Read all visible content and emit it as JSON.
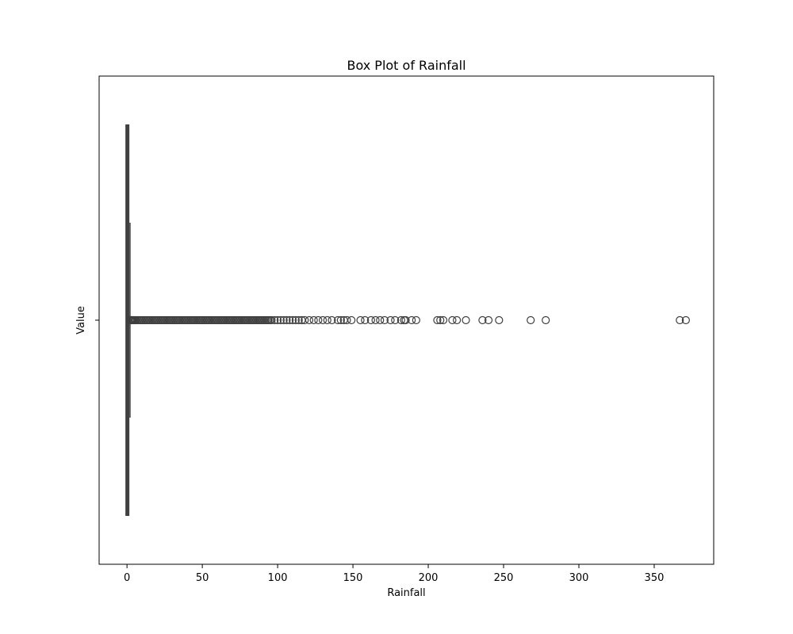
{
  "chart_data": {
    "type": "box",
    "orientation": "horizontal",
    "title": "Box Plot of Rainfall",
    "xlabel": "Rainfall",
    "ylabel": "Value",
    "xlim": [
      -18.5,
      389.5
    ],
    "xticks": [
      0,
      50,
      100,
      150,
      200,
      250,
      300,
      350
    ],
    "box": {
      "min": 0,
      "q1": 0,
      "median": 0,
      "q3": 0.8,
      "max": 2.0
    },
    "outliers": [
      2.2,
      2.4,
      2.6,
      2.8,
      3.0,
      3.4,
      3.8,
      4.2,
      4.8,
      5.4,
      6,
      7,
      8,
      9,
      10,
      11,
      12,
      13,
      14,
      15,
      16,
      17,
      18,
      19,
      20,
      21,
      22,
      23,
      24,
      25,
      26,
      27,
      28,
      29,
      30,
      31,
      32,
      33,
      34,
      35,
      36,
      37,
      38,
      39,
      40,
      41,
      42,
      43,
      44,
      45,
      46,
      47,
      48,
      49,
      50,
      51,
      52,
      53,
      54,
      55,
      56,
      57,
      58,
      59,
      60,
      61,
      62,
      63,
      64,
      65,
      66,
      67,
      68,
      69,
      70,
      71,
      72,
      73,
      74,
      75,
      76,
      77,
      78,
      79,
      80,
      81,
      82,
      83,
      84,
      85,
      86,
      87,
      88,
      89,
      90,
      91,
      92,
      93,
      94,
      95,
      96,
      98,
      100,
      102,
      104,
      106,
      108,
      110,
      112,
      114,
      116,
      118,
      121,
      124,
      127,
      130,
      133,
      136,
      140,
      142,
      144,
      146,
      149,
      155,
      158,
      162,
      165,
      168,
      171,
      175,
      178,
      182,
      184,
      185,
      189,
      192,
      206,
      208,
      210,
      216,
      219,
      225,
      236,
      240,
      247,
      268,
      278,
      367,
      371
    ],
    "colors": {
      "box_fill": "#4c72b0",
      "lines": "#3f3f3f",
      "frame": "#000000"
    }
  }
}
